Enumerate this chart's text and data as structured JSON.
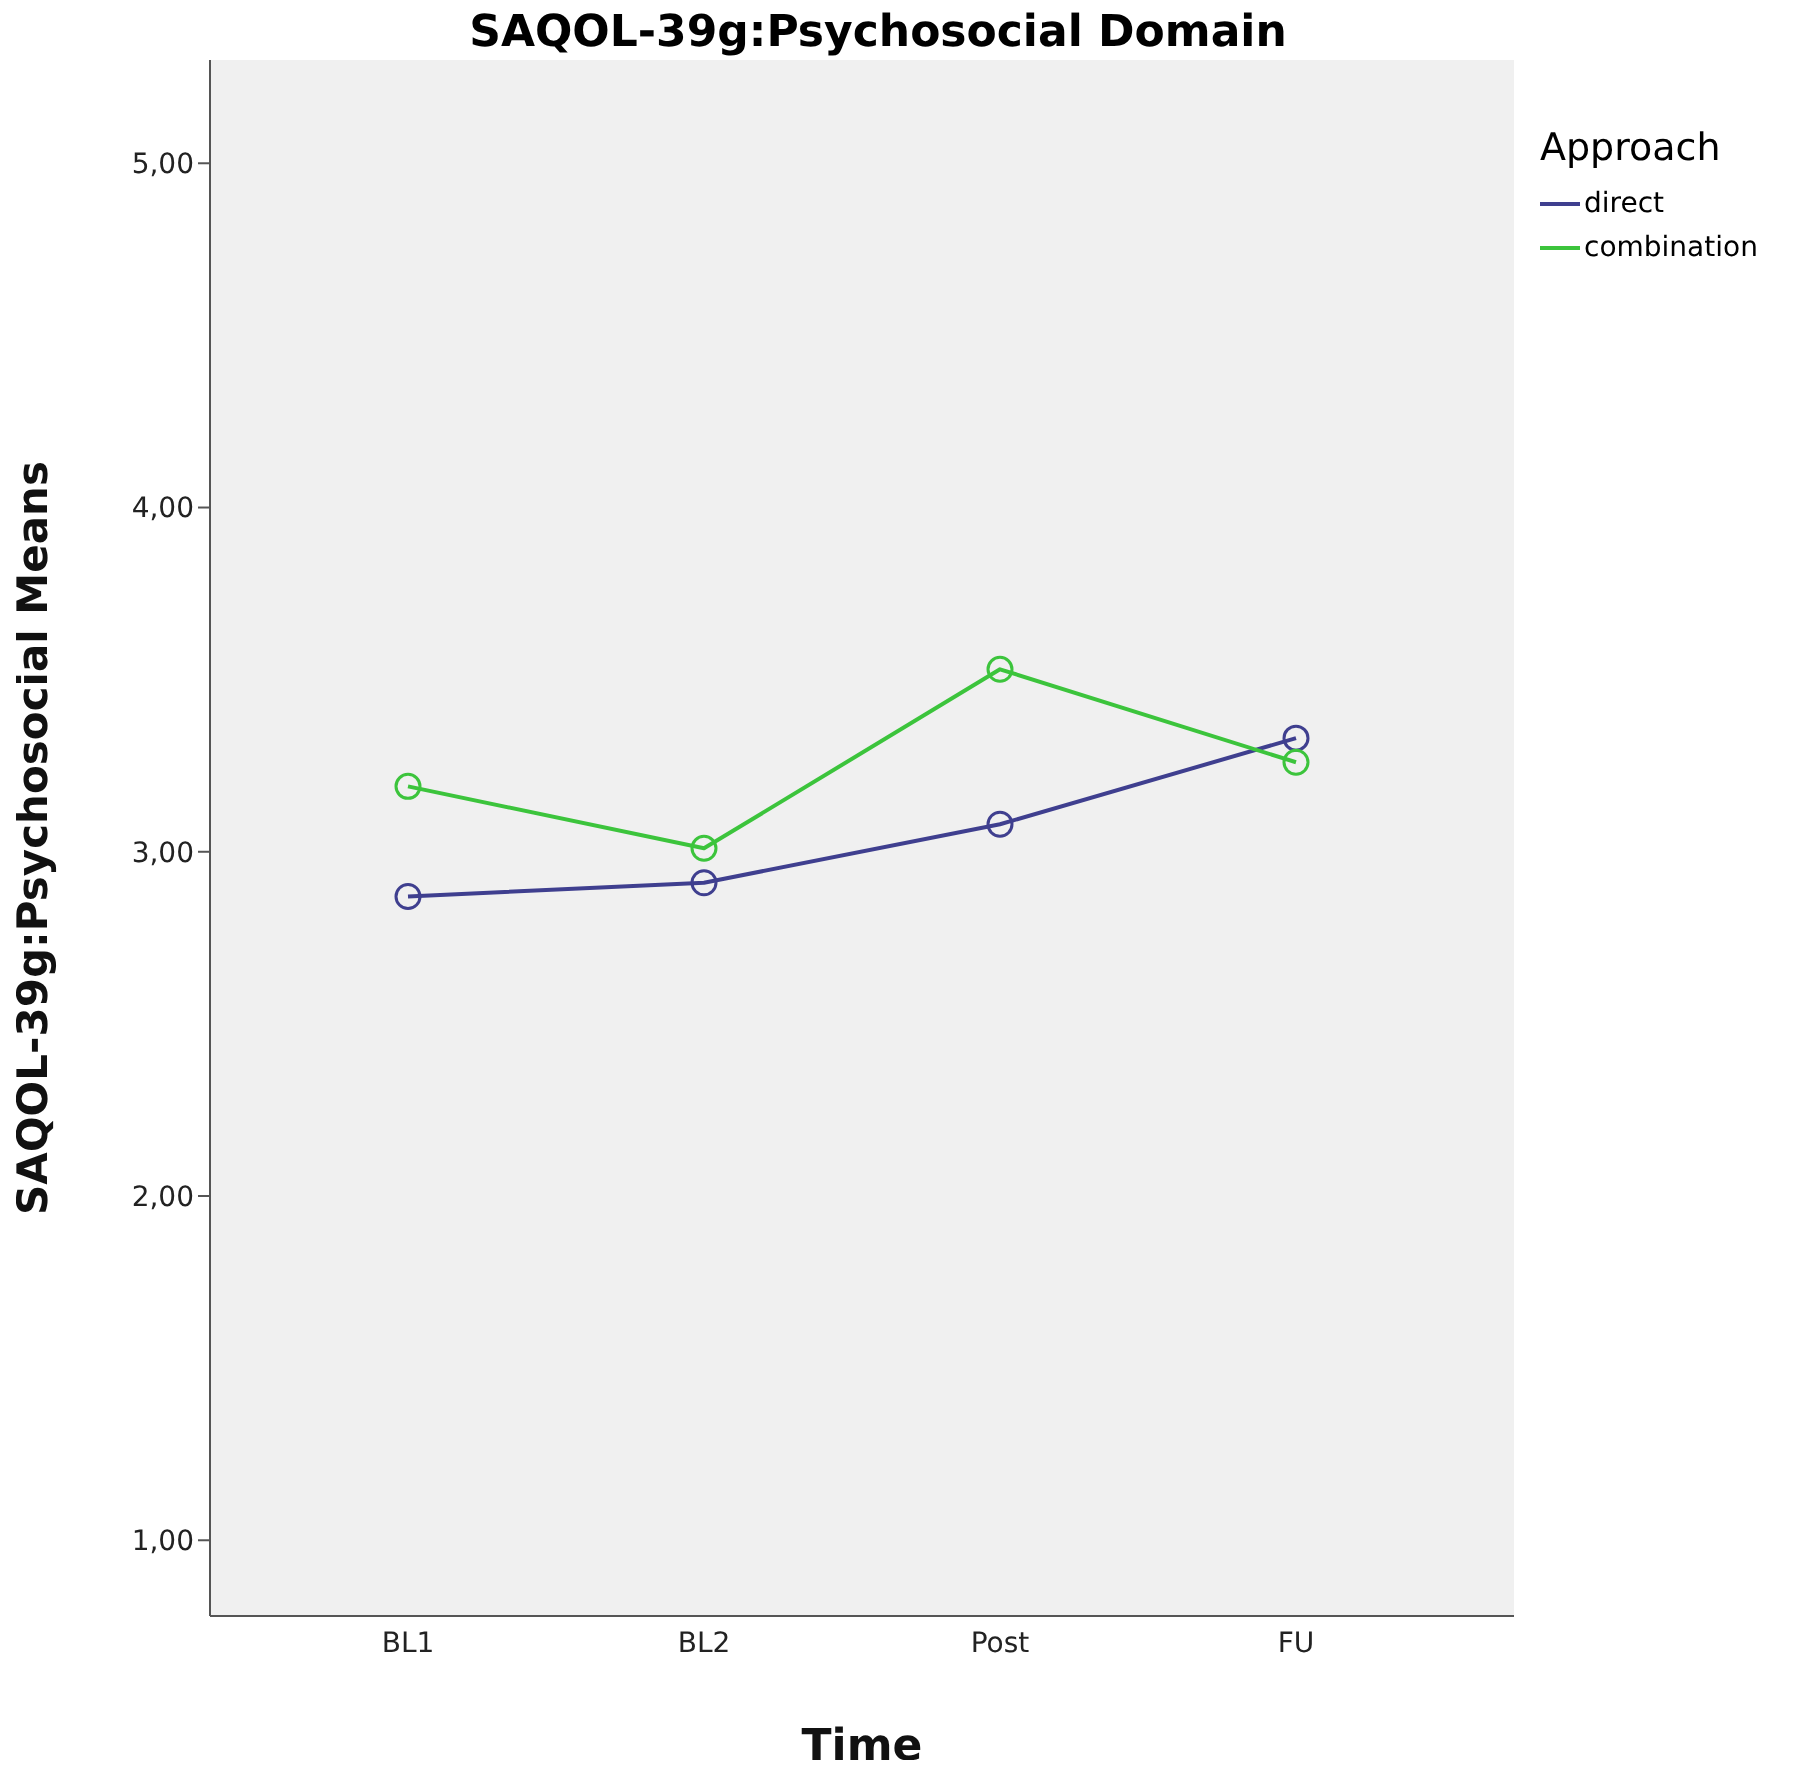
{
  "chart_data": {
    "type": "line",
    "title": "SAQOL-39g:Psychosocial Domain",
    "xlabel": "Time",
    "ylabel": "SAQOL-39g:Psychosocial Means",
    "legend_title": "Approach",
    "categories": [
      "BL1",
      "BL2",
      "Post",
      "FU"
    ],
    "series": [
      {
        "name": "direct",
        "color": "#3f3f8f",
        "values": [
          2.87,
          2.91,
          3.08,
          3.33
        ]
      },
      {
        "name": "combination",
        "color": "#3cc43c",
        "values": [
          3.19,
          3.01,
          3.53,
          3.26
        ]
      }
    ],
    "ylim": [
      0.78,
      5.3
    ],
    "yticks": [
      {
        "value": 1,
        "label": "1,00"
      },
      {
        "value": 2,
        "label": "2,00"
      },
      {
        "value": 3,
        "label": "3,00"
      },
      {
        "value": 4,
        "label": "4,00"
      },
      {
        "value": 5,
        "label": "5,00"
      }
    ],
    "marker": "circle",
    "legend": "top right"
  }
}
